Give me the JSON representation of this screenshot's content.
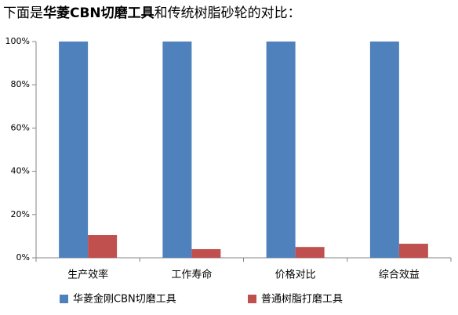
{
  "chart_data": {
    "type": "bar",
    "title": [
      "下面是",
      "华菱CBN切磨工具",
      "和传统树脂砂轮的对比："
    ],
    "categories": [
      "生产效率",
      "工作寿命",
      "价格对比",
      "综合效益"
    ],
    "series": [
      {
        "name": "华菱金刚CBN切磨工具",
        "color": "#4f81bd",
        "values": [
          100,
          100,
          100,
          100
        ]
      },
      {
        "name": "普通树脂打磨工具",
        "color": "#c0504d",
        "values": [
          10.5,
          4,
          5,
          6.5
        ]
      }
    ],
    "ylim": [
      0,
      100
    ],
    "yticks": [
      {
        "value": 0,
        "label": "0%"
      },
      {
        "value": 20,
        "label": "20%"
      },
      {
        "value": 40,
        "label": "40%"
      },
      {
        "value": 60,
        "label": "60%"
      },
      {
        "value": 80,
        "label": "80%"
      },
      {
        "value": 100,
        "label": "100%"
      }
    ],
    "grid": false,
    "legend": "bottom"
  }
}
